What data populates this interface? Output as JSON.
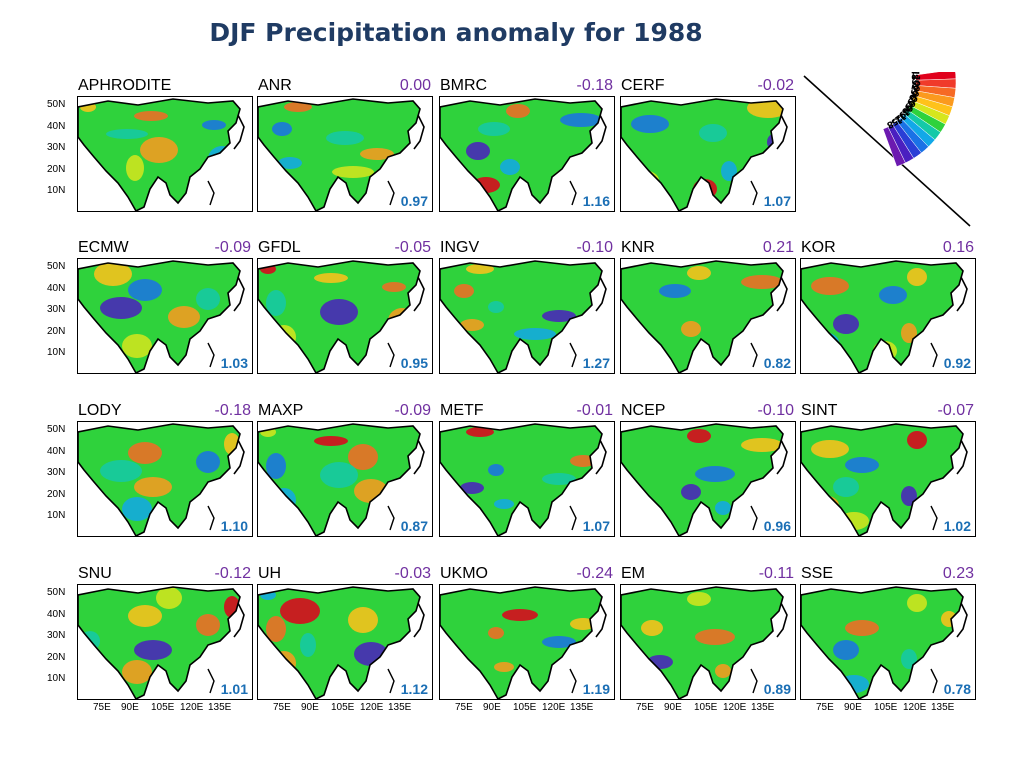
{
  "title": "DJF Precipitation anomaly for 1988",
  "panels": [
    {
      "name": "APHRODITE",
      "corr": "",
      "ratio": ""
    },
    {
      "name": "ANR",
      "corr": "0.00",
      "ratio": "0.97"
    },
    {
      "name": "BMRC",
      "corr": "-0.18",
      "ratio": "1.16"
    },
    {
      "name": "CERF",
      "corr": "-0.02",
      "ratio": "1.07"
    },
    {
      "name": "ECMW",
      "corr": "-0.09",
      "ratio": "1.03"
    },
    {
      "name": "GFDL",
      "corr": "-0.05",
      "ratio": "0.95"
    },
    {
      "name": "INGV",
      "corr": "-0.10",
      "ratio": "1.27"
    },
    {
      "name": "KNR",
      "corr": "0.21",
      "ratio": "0.82"
    },
    {
      "name": "KOR",
      "corr": "0.16",
      "ratio": "0.92"
    },
    {
      "name": "LODY",
      "corr": "-0.18",
      "ratio": "1.10"
    },
    {
      "name": "MAXP",
      "corr": "-0.09",
      "ratio": "0.87"
    },
    {
      "name": "METF",
      "corr": "-0.01",
      "ratio": "1.07"
    },
    {
      "name": "NCEP",
      "corr": "-0.10",
      "ratio": "0.96"
    },
    {
      "name": "SINT",
      "corr": "-0.07",
      "ratio": "1.02"
    },
    {
      "name": "SNU",
      "corr": "-0.12",
      "ratio": "1.01"
    },
    {
      "name": "UH",
      "corr": "-0.03",
      "ratio": "1.12"
    },
    {
      "name": "UKMO",
      "corr": "-0.24",
      "ratio": "1.19"
    },
    {
      "name": "EM",
      "corr": "-0.11",
      "ratio": "0.89"
    },
    {
      "name": "SSE",
      "corr": "0.23",
      "ratio": "0.78"
    }
  ],
  "yticks": [
    "50N",
    "40N",
    "30N",
    "20N",
    "10N"
  ],
  "xticks": [
    "75E",
    "90E",
    "105E",
    "120E",
    "135E"
  ],
  "legend": {
    "labels": [
      "1.8",
      "1.5",
      "1.2",
      "0.9",
      "0.6",
      "0.3",
      "-0.3",
      "-0.6",
      "-0.9",
      "-1.2",
      "-1.5",
      "-1.8"
    ],
    "colors": [
      "#e0001b",
      "#f03a2a",
      "#f66a24",
      "#fb9a1e",
      "#ffc21a",
      "#d6e61c",
      "#2fd23c",
      "#14c9a8",
      "#12a8e8",
      "#1a72e6",
      "#2a3ed6",
      "#4a1fc0",
      "#6c1ab0"
    ]
  }
}
